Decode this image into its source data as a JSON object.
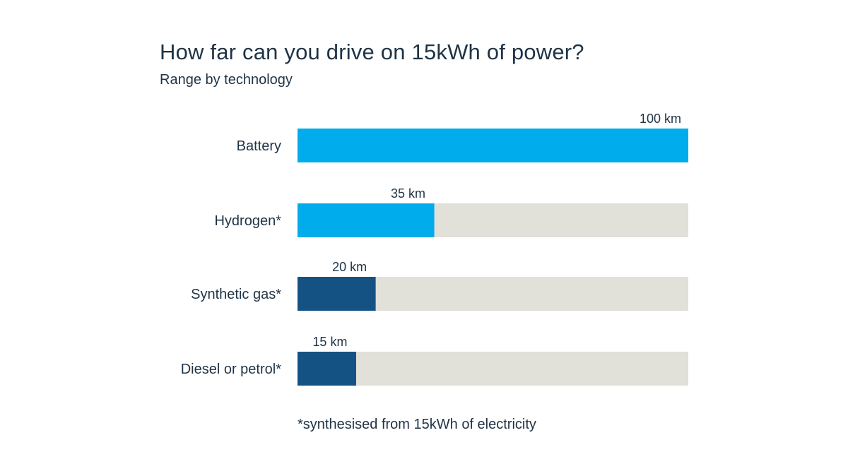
{
  "chart_data": {
    "type": "bar",
    "orientation": "horizontal",
    "title": "How far can you drive on 15kWh of power?",
    "subtitle": "Range by technology",
    "footnote": "*synthesised from 15kWh of electricity",
    "unit": "km",
    "xlim": [
      0,
      100
    ],
    "grid": false,
    "colors": {
      "track": "#e1e0d9",
      "light_blue": "#00acec",
      "dark_blue": "#145283",
      "text": "#1f3345"
    },
    "bars": [
      {
        "category": "Battery",
        "value": 100,
        "label": "100 km",
        "color": "#00acec"
      },
      {
        "category": "Hydrogen*",
        "value": 35,
        "label": "35 km",
        "color": "#00acec"
      },
      {
        "category": "Synthetic gas*",
        "value": 20,
        "label": "20 km",
        "color": "#145283"
      },
      {
        "category": "Diesel or petrol*",
        "value": 15,
        "label": "15 km",
        "color": "#145283"
      }
    ]
  }
}
